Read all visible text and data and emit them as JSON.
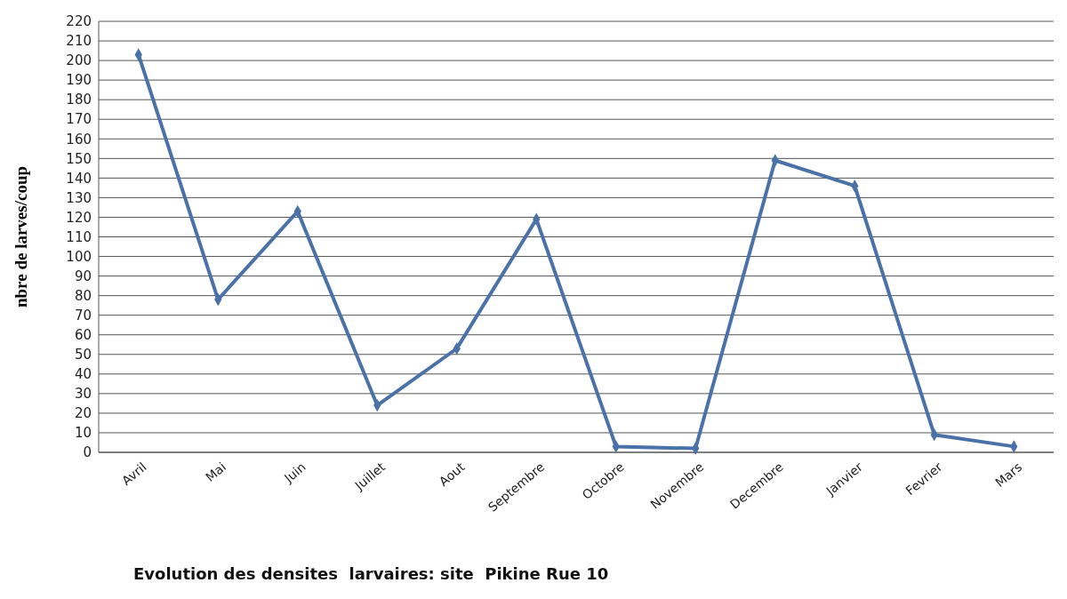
{
  "chart_data": {
    "type": "line",
    "title": "Evolution des densites  larvaires: site  Pikine Rue 10",
    "ylabel": "nbre de larves/coup",
    "categories": [
      "Avril",
      "Mai",
      "Juin",
      "Juillet",
      "Aout",
      "Septembre",
      "Octobre",
      "Novembre",
      "Decembre",
      "Janvier",
      "Fevrier",
      "Mars"
    ],
    "series": [
      {
        "color": "#4a72a8",
        "values": [
          203,
          78,
          123,
          24,
          53,
          119,
          3,
          2,
          149,
          136,
          9,
          3
        ]
      }
    ],
    "ylim": [
      0,
      220
    ],
    "yticks": [
      0,
      10,
      20,
      30,
      40,
      50,
      60,
      70,
      80,
      90,
      100,
      110,
      120,
      130,
      140,
      150,
      160,
      170,
      180,
      190,
      200,
      210,
      220
    ],
    "grid": "y",
    "marker": "diamond",
    "line_style": "solid"
  }
}
